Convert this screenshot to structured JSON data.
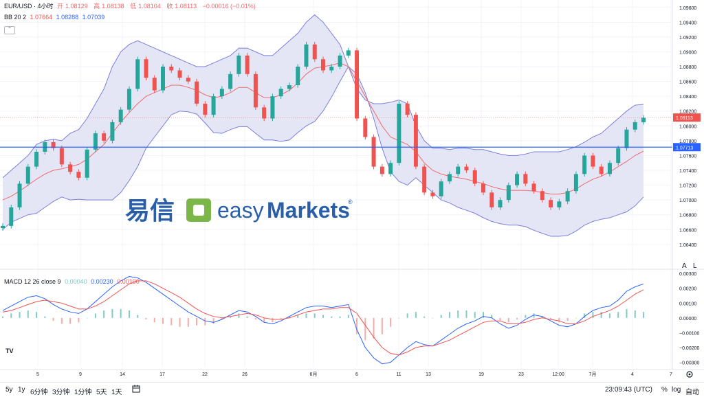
{
  "header": {
    "symbol": "EUR/USD · 4小时",
    "open_label": "开",
    "open": "1.08129",
    "high_label": "高",
    "high": "1.08138",
    "low_label": "低",
    "low": "1.08104",
    "close_label": "收",
    "close": "1.08113",
    "change": "−0.00016 (−0.01%)",
    "bb_label": "BB 20 2",
    "bb_basis": "1.07664",
    "bb_upper": "1.08288",
    "bb_lower": "1.07039",
    "macd_label": "MACD 12 26 close 9",
    "macd_hist": "0.00040",
    "macd_line": "0.00230",
    "macd_signal": "0.00190"
  },
  "watermark": {
    "cn_text": "易信",
    "brand_easy": "easy",
    "brand_markets": "Markets",
    "reg": "®"
  },
  "price_badges": {
    "last": "1.08113",
    "hline": "1.07713"
  },
  "scale_buttons": {
    "auto_a": "A",
    "log_l": "L"
  },
  "toolbar": {
    "ranges": [
      "5y",
      "1y",
      "6分钟",
      "3分钟",
      "1分钟",
      "5天",
      "1天"
    ],
    "calendar_icon": "calendar-icon",
    "time": "23:09:43 (UTC)",
    "percent": "%",
    "log": "log",
    "auto": "自动",
    "settings_icon": "gear-icon",
    "logo": "TV"
  },
  "colors": {
    "up": "#26a69a",
    "down": "#ef5350",
    "bb_band": "#7b7fd8",
    "bb_fill": "#e1e3f5",
    "bb_basis": "#f06a6a",
    "hline": "#2962ff",
    "macd": "#2962ff",
    "signal": "#ef5350"
  },
  "chart_data": [
    {
      "type": "line",
      "title": "EUR/USD · 4小时",
      "x_ticks": [
        "5",
        "9",
        "14",
        "17",
        "22",
        "26",
        "6月",
        "6",
        "11",
        "13",
        "19",
        "23",
        "12:00",
        "7月",
        "4",
        "7"
      ],
      "y_ticks": [
        "1.09600",
        "1.09400",
        "1.09200",
        "1.09000",
        "1.08800",
        "1.08600",
        "1.08400",
        "1.08200",
        "1.08000",
        "1.07800",
        "1.07600",
        "1.07400",
        "1.07200",
        "1.07000",
        "1.06800",
        "1.06600",
        "1.06400"
      ],
      "ylim": [
        1.0625,
        1.097
      ],
      "horizontal_line": 1.07713,
      "last_price": 1.08113,
      "series": [
        {
          "name": "Close",
          "values": [
            1.0665,
            1.069,
            1.0722,
            1.0745,
            1.0765,
            1.0778,
            1.077,
            1.0748,
            1.0738,
            1.073,
            1.0768,
            1.079,
            1.078,
            1.0805,
            1.0822,
            1.085,
            1.089,
            1.0865,
            1.0848,
            1.088,
            1.0875,
            1.0865,
            1.086,
            1.083,
            1.0815,
            1.084,
            1.085,
            1.087,
            1.0895,
            1.087,
            1.0825,
            1.081,
            1.084,
            1.085,
            1.0855,
            1.088,
            1.091,
            1.089,
            1.0875,
            1.088,
            1.0895,
            1.0902,
            1.081,
            1.0785,
            1.0745,
            1.0735,
            1.075,
            1.083,
            1.0815,
            1.0745,
            1.071,
            1.0705,
            1.0725,
            1.0735,
            1.0745,
            1.074,
            1.0722,
            1.071,
            1.069,
            1.07,
            1.072,
            1.0735,
            1.0722,
            1.0712,
            1.07,
            1.069,
            1.0698,
            1.0712,
            1.0735,
            1.076,
            1.0745,
            1.0735,
            1.075,
            1.077,
            1.0795,
            1.0805,
            1.0811
          ]
        },
        {
          "name": "BB Upper",
          "values": [
            1.073,
            1.074,
            1.075,
            1.076,
            1.0775,
            1.078,
            1.0782,
            1.078,
            1.079,
            1.0795,
            1.081,
            1.083,
            1.085,
            1.088,
            1.09,
            1.091,
            1.0915,
            1.091,
            1.0905,
            1.09,
            1.0895,
            1.089,
            1.0885,
            1.088,
            1.088,
            1.0885,
            1.089,
            1.0895,
            1.0905,
            1.0905,
            1.09,
            1.0895,
            1.0895,
            1.0905,
            1.0915,
            1.0925,
            1.094,
            1.095,
            1.094,
            1.0925,
            1.091,
            1.088,
            1.085,
            1.0835,
            1.083,
            1.083,
            1.0832,
            1.0835,
            1.083,
            1.08,
            1.078,
            1.077,
            1.077,
            1.0768,
            1.077,
            1.077,
            1.0768,
            1.0768,
            1.0765,
            1.0762,
            1.076,
            1.076,
            1.0762,
            1.0765,
            1.0765,
            1.0765,
            1.0765,
            1.0768,
            1.0772,
            1.0778,
            1.0785,
            1.079,
            1.08,
            1.081,
            1.082,
            1.0828,
            1.0829
          ]
        },
        {
          "name": "BB Basis",
          "values": [
            1.07,
            1.0705,
            1.0712,
            1.072,
            1.0728,
            1.0735,
            1.074,
            1.0742,
            1.0745,
            1.0748,
            1.0755,
            1.0765,
            1.0775,
            1.079,
            1.0805,
            1.0818,
            1.083,
            1.084,
            1.0845,
            1.085,
            1.0855,
            1.0855,
            1.0852,
            1.0848,
            1.0842,
            1.0838,
            1.084,
            1.0845,
            1.0852,
            1.0852,
            1.0845,
            1.0838,
            1.0838,
            1.0842,
            1.0848,
            1.0858,
            1.087,
            1.0878,
            1.088,
            1.0882,
            1.0885,
            1.088,
            1.086,
            1.084,
            1.082,
            1.08,
            1.0785,
            1.078,
            1.0775,
            1.0765,
            1.075,
            1.074,
            1.0735,
            1.0732,
            1.073,
            1.0728,
            1.0725,
            1.0722,
            1.0718,
            1.0715,
            1.0713,
            1.0713,
            1.0713,
            1.0712,
            1.071,
            1.0708,
            1.0708,
            1.071,
            1.0715,
            1.0722,
            1.0728,
            1.0732,
            1.0738,
            1.0745,
            1.0752,
            1.076,
            1.0766
          ]
        },
        {
          "name": "BB Lower",
          "values": [
            1.066,
            1.067,
            1.0675,
            1.068,
            1.0682,
            1.069,
            1.0698,
            1.0704,
            1.07,
            1.0701,
            1.07,
            1.07,
            1.07,
            1.07,
            1.071,
            1.0726,
            1.0745,
            1.077,
            1.0785,
            1.08,
            1.0815,
            1.082,
            1.0819,
            1.0816,
            1.0804,
            1.0791,
            1.079,
            1.0795,
            1.0799,
            1.0799,
            1.079,
            1.0781,
            1.0781,
            1.0779,
            1.0781,
            1.0791,
            1.08,
            1.0806,
            1.082,
            1.0839,
            1.086,
            1.088,
            1.087,
            1.0845,
            1.081,
            1.077,
            1.0738,
            1.0725,
            1.072,
            1.073,
            1.072,
            1.071,
            1.07,
            1.0696,
            1.069,
            1.0686,
            1.0682,
            1.0676,
            1.0671,
            1.0668,
            1.0666,
            1.0666,
            1.0664,
            1.0659,
            1.0655,
            1.0651,
            1.0651,
            1.0652,
            1.0658,
            1.0666,
            1.0671,
            1.0674,
            1.0676,
            1.068,
            1.0684,
            1.0692,
            1.0704
          ]
        }
      ]
    },
    {
      "type": "bar",
      "title": "MACD 12 26 close 9",
      "y_ticks": [
        "0.00300",
        "0.00200",
        "0.00100",
        "0.00000",
        "−0.00100",
        "−0.00200",
        "−0.00300"
      ],
      "ylim": [
        -0.0033,
        0.0031
      ],
      "series": [
        {
          "name": "MACD",
          "values": [
            0.0005,
            0.0008,
            0.0011,
            0.0014,
            0.0015,
            0.0013,
            0.0009,
            0.0006,
            0.0004,
            0.0003,
            0.0006,
            0.0011,
            0.0016,
            0.0021,
            0.0025,
            0.0028,
            0.0027,
            0.0024,
            0.002,
            0.0016,
            0.0012,
            0.0008,
            0.0004,
            0.0001,
            -0.0002,
            -0.0003,
            -0.0001,
            0.0002,
            0.0005,
            0.0004,
            0.0001,
            -0.0003,
            -0.0004,
            -0.0002,
            0.0001,
            0.0004,
            0.0007,
            0.0008,
            0.0008,
            0.0007,
            0.0008,
            0.0009,
            -0.0008,
            -0.002,
            -0.0027,
            -0.0031,
            -0.003,
            -0.0025,
            -0.002,
            -0.0016,
            -0.0018,
            -0.0019,
            -0.0015,
            -0.0011,
            -0.0007,
            -0.0004,
            -0.0002,
            0.0001,
            0.0,
            -0.0004,
            -0.0007,
            -0.0005,
            -0.0001,
            0.0002,
            0.0001,
            -0.0002,
            -0.0005,
            -0.0006,
            -0.0004,
            0.0001,
            0.0005,
            0.0007,
            0.0008,
            0.0012,
            0.0018,
            0.0021,
            0.0023
          ]
        },
        {
          "name": "Signal",
          "values": [
            0.0004,
            0.0005,
            0.0007,
            0.0009,
            0.0011,
            0.0012,
            0.0011,
            0.001,
            0.0008,
            0.0006,
            0.0006,
            0.0008,
            0.0011,
            0.0015,
            0.0019,
            0.0023,
            0.0025,
            0.0025,
            0.0023,
            0.002,
            0.0017,
            0.0014,
            0.001,
            0.0006,
            0.0003,
            0.0001,
            0.0,
            0.0001,
            0.0002,
            0.0003,
            0.0002,
            0.0,
            -0.0001,
            -0.0001,
            0.0,
            0.0002,
            0.0004,
            0.0005,
            0.0006,
            0.0006,
            0.0007,
            0.0007,
            0.0003,
            -0.0005,
            -0.0013,
            -0.002,
            -0.0024,
            -0.0025,
            -0.0023,
            -0.002,
            -0.0019,
            -0.0019,
            -0.0017,
            -0.0015,
            -0.0012,
            -0.0009,
            -0.0006,
            -0.0003,
            -0.0002,
            -0.0002,
            -0.0004,
            -0.0004,
            -0.0003,
            -0.0001,
            0.0,
            -0.0001,
            -0.0002,
            -0.0004,
            -0.0004,
            -0.0002,
            0.0001,
            0.0003,
            0.0005,
            0.0008,
            0.0012,
            0.0016,
            0.0019
          ]
        }
      ]
    }
  ]
}
